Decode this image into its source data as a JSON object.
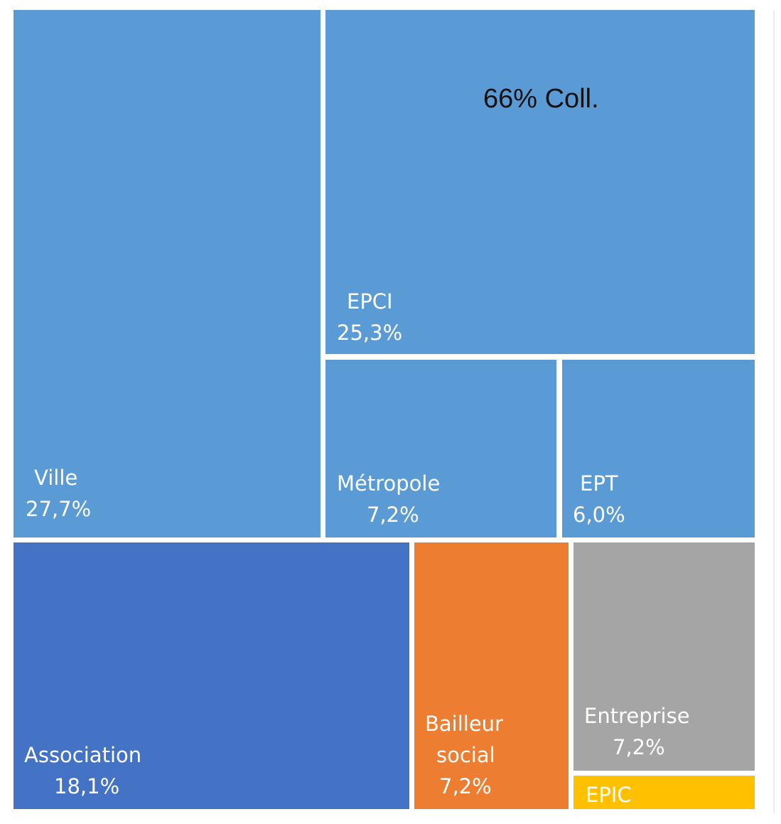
{
  "chart_data": {
    "type": "treemap",
    "unit": "%",
    "colors": {
      "collectivites": "#5b9bd5",
      "association": "#4472c4",
      "bailleur_social": "#ed7d31",
      "entreprise": "#a5a5a5",
      "epic": "#ffc000"
    },
    "annotation": "66% Coll.",
    "groups": [
      {
        "key": "collectivites",
        "items": [
          {
            "name": "Ville",
            "label_lines": [
              "Ville",
              "27,7%"
            ],
            "value": 27.7
          },
          {
            "name": "EPCI",
            "label_lines": [
              "EPCI",
              "25,3%"
            ],
            "value": 25.3
          },
          {
            "name": "Métropole",
            "label_lines": [
              "Métropole",
              "7,2%"
            ],
            "value": 7.2
          },
          {
            "name": "EPT",
            "label_lines": [
              "EPT",
              "6,0%"
            ],
            "value": 6.0
          }
        ]
      },
      {
        "key": "autres",
        "items": [
          {
            "name": "Association",
            "label_lines": [
              "Association",
              "18,1%"
            ],
            "value": 18.1,
            "color_key": "association"
          },
          {
            "name": "Bailleur social",
            "label_lines": [
              "Bailleur",
              "social",
              "7,2%"
            ],
            "value": 7.2,
            "color_key": "bailleur_social"
          },
          {
            "name": "Entreprise",
            "label_lines": [
              "Entreprise",
              "7,2%"
            ],
            "value": 7.2,
            "color_key": "entreprise"
          },
          {
            "name": "EPIC",
            "label_lines": [
              "EPIC"
            ],
            "color_key": "epic"
          }
        ]
      }
    ]
  }
}
